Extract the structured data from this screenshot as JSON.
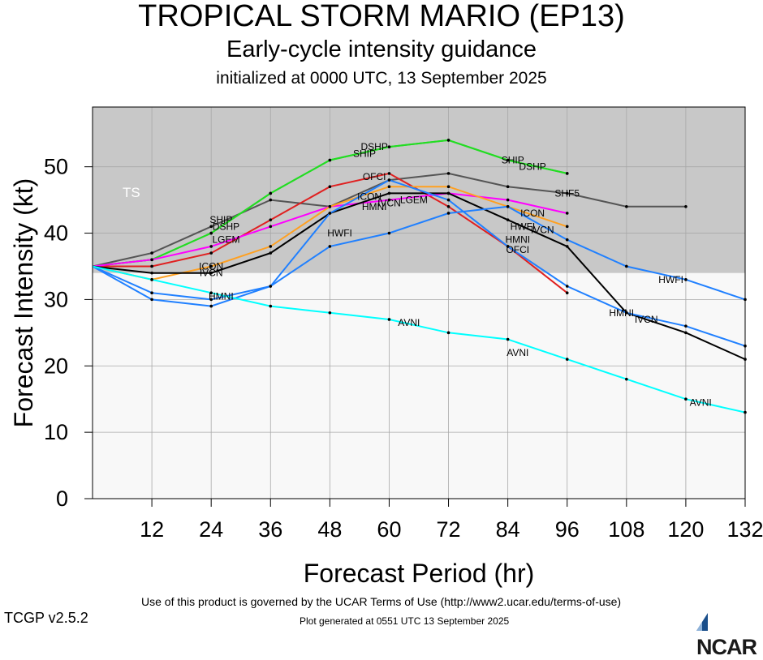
{
  "title": "TROPICAL STORM MARIO (EP13)",
  "subtitle": "Early-cycle intensity guidance",
  "init": "initialized at 0000 UTC, 13 September 2025",
  "footer": {
    "terms": "Use of this product is governed by the UCAR Terms of Use (http://www2.ucar.edu/terms-of-use)",
    "generated": "Plot generated at 0551 UTC   13 September 2025",
    "version": "TCGP v2.5.2",
    "logo": "NCAR"
  },
  "colors": {
    "shade_ts": "#c8c8c8",
    "shade_below": "#f8f8f8"
  },
  "chart_data": {
    "type": "line",
    "xlabel": "Forecast Period (hr)",
    "ylabel": "Forecast Intensity (kt)",
    "xlim": [
      0,
      132
    ],
    "ylim": [
      0,
      59
    ],
    "xticks": [
      12,
      24,
      36,
      48,
      60,
      72,
      84,
      96,
      108,
      120,
      132
    ],
    "yticks": [
      0,
      10,
      20,
      30,
      40,
      50
    ],
    "grid": true,
    "band": {
      "label": "TS",
      "from": 34,
      "to": 59
    },
    "series": [
      {
        "name": "SHF5",
        "color": "#555555",
        "label_at": [
          [
            96,
            46
          ]
        ],
        "x": [
          0,
          12,
          24,
          36,
          48,
          60,
          72,
          84,
          96,
          108,
          120
        ],
        "y": [
          35,
          37,
          41,
          45,
          44,
          48,
          49,
          47,
          46,
          44,
          44
        ]
      },
      {
        "name": "SHIP",
        "color": "#22dd22",
        "label_at": [
          [
            26,
            42
          ],
          [
            55,
            52
          ],
          [
            85,
            51
          ]
        ],
        "x": [
          0,
          12,
          24,
          36,
          48,
          60,
          72,
          84,
          96
        ],
        "y": [
          35,
          36,
          40,
          46,
          51,
          53,
          54,
          51,
          49
        ]
      },
      {
        "name": "DSHP",
        "color": "#22dd22",
        "label_at": [
          [
            27,
            41
          ],
          [
            57,
            53
          ],
          [
            89,
            50
          ]
        ],
        "x": [
          0,
          12,
          24,
          36,
          48,
          60,
          72,
          84,
          96
        ],
        "y": [
          35,
          36,
          40,
          46,
          51,
          53,
          54,
          51,
          49
        ]
      },
      {
        "name": "OFCI",
        "color": "#e02020",
        "label_at": [
          [
            57,
            48.5
          ],
          [
            86,
            37.5
          ]
        ],
        "x": [
          0,
          12,
          24,
          36,
          48,
          60,
          72,
          84,
          96
        ],
        "y": [
          35,
          35,
          37,
          42,
          47,
          49,
          44,
          38,
          31
        ]
      },
      {
        "name": "LGEM",
        "color": "#ff00ff",
        "label_at": [
          [
            27,
            39
          ],
          [
            65,
            45
          ]
        ],
        "x": [
          0,
          12,
          24,
          36,
          48,
          60,
          72,
          84,
          96
        ],
        "y": [
          35,
          36,
          38,
          41,
          44,
          45,
          46,
          45,
          43
        ]
      },
      {
        "name": "ICON",
        "color": "#ffa020",
        "label_at": [
          [
            24,
            35
          ],
          [
            56,
            45.5
          ],
          [
            89,
            43
          ]
        ],
        "x": [
          0,
          12,
          24,
          36,
          48,
          60,
          72,
          84,
          96
        ],
        "y": [
          35,
          33,
          35,
          38,
          44,
          47,
          47,
          44,
          41
        ]
      },
      {
        "name": "IVCN",
        "color": "#000000",
        "label_at": [
          [
            24,
            34
          ],
          [
            60,
            44.5
          ],
          [
            91,
            40.5
          ],
          [
            112,
            27
          ]
        ],
        "x": [
          0,
          12,
          24,
          36,
          48,
          60,
          72,
          84,
          96,
          108,
          120,
          132
        ],
        "y": [
          35,
          34,
          34,
          37,
          43,
          46,
          46,
          42,
          38,
          28,
          25,
          21
        ]
      },
      {
        "name": "HWFI",
        "color": "#2080ff",
        "label_at": [
          [
            50,
            40
          ],
          [
            87,
            41
          ],
          [
            117,
            33
          ]
        ],
        "x": [
          0,
          12,
          24,
          36,
          48,
          60,
          72,
          84,
          96,
          108,
          120,
          132
        ],
        "y": [
          35,
          30,
          29,
          32,
          38,
          40,
          43,
          44,
          39,
          35,
          33,
          30
        ]
      },
      {
        "name": "HMNI",
        "color": "#2080ff",
        "label_at": [
          [
            26,
            30.5
          ],
          [
            57,
            44
          ],
          [
            86,
            39
          ],
          [
            107,
            28
          ]
        ],
        "x": [
          0,
          12,
          24,
          36,
          48,
          60,
          72,
          84,
          96,
          108,
          120,
          132
        ],
        "y": [
          35,
          31,
          30,
          32,
          43,
          48,
          45,
          38,
          32,
          28,
          26,
          23
        ]
      },
      {
        "name": "AVNI",
        "color": "#00ffff",
        "label_at": [
          [
            64,
            26.5
          ],
          [
            86,
            22
          ],
          [
            123,
            14.5
          ]
        ],
        "x": [
          0,
          12,
          24,
          36,
          48,
          60,
          72,
          84,
          96,
          108,
          120,
          132
        ],
        "y": [
          35,
          33,
          31,
          29,
          28,
          27,
          25,
          24,
          21,
          18,
          15,
          13
        ]
      }
    ]
  }
}
